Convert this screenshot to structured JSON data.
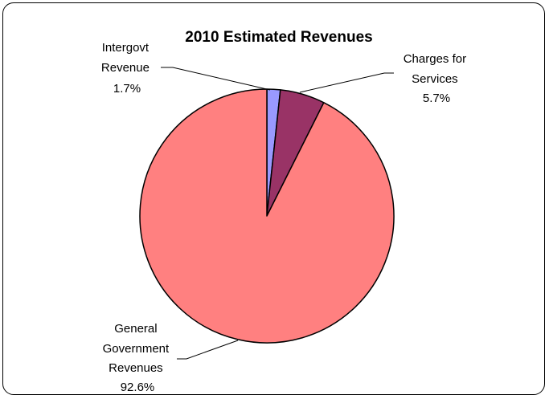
{
  "chart_data": {
    "type": "pie",
    "title": "2010 Estimated Revenues",
    "slices": [
      {
        "label_lines": [
          "Intergovt",
          "Revenue",
          "1.7%"
        ],
        "value": 1.7,
        "color": "#9999FF"
      },
      {
        "label_lines": [
          "Charges for",
          "Services",
          "5.7%"
        ],
        "value": 5.7,
        "color": "#993366"
      },
      {
        "label_lines": [
          "General",
          "Government",
          "Revenues",
          "92.6%"
        ],
        "value": 92.6,
        "color": "#FF8080"
      }
    ],
    "start_angle": "12 o'clock",
    "direction": "clockwise",
    "legend": "none"
  }
}
